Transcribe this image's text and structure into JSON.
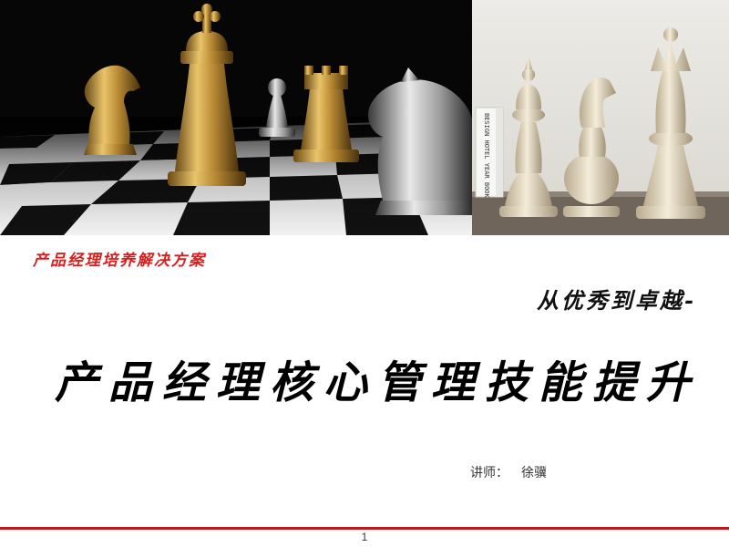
{
  "tagline": "产品经理培养解决方案",
  "subtitle": "从优秀到卓越-",
  "title": "产品经理核心管理技能提升",
  "lecturer": {
    "label": "讲师：",
    "name": "徐骥"
  },
  "page_number": "1",
  "book_spine_text": "BESIGN HOTEL YEAR BOOK",
  "colors": {
    "accent_red": "#d81e1e",
    "footer_line": "#c8151b"
  },
  "images": {
    "left": "chess-board-photo-icon",
    "right": "white-chess-pieces-photo-icon"
  }
}
